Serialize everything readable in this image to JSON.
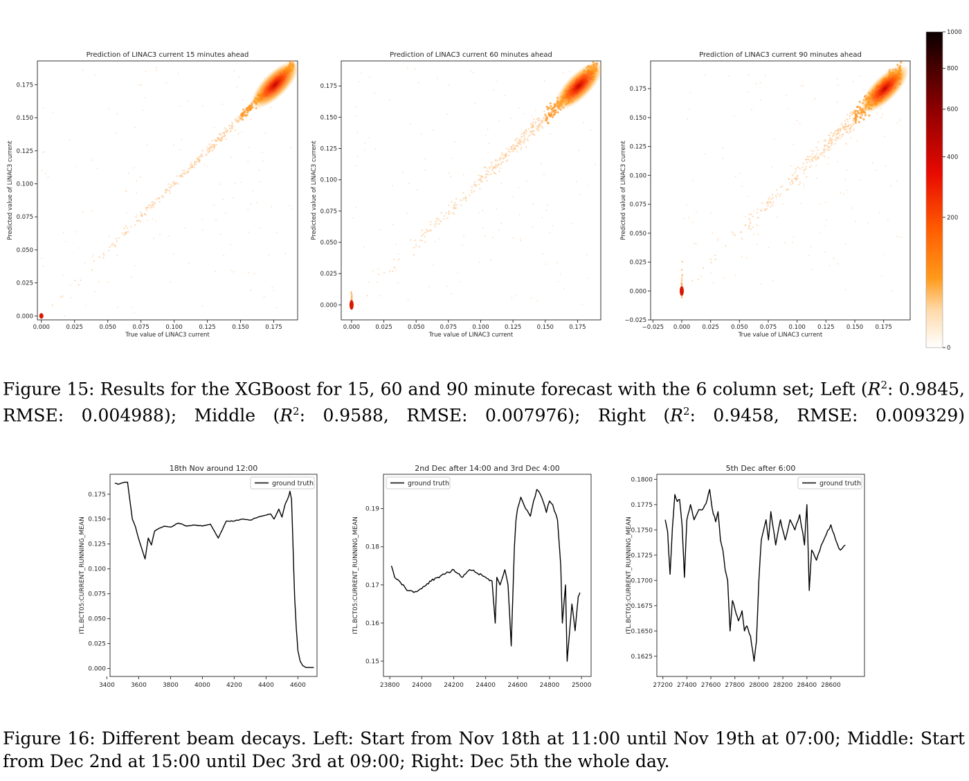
{
  "figure15": {
    "colorbar": {
      "ticks": [
        "1000",
        "800",
        "600",
        "400",
        "200",
        "0"
      ],
      "tick_values": [
        1000,
        800,
        600,
        400,
        200,
        0
      ]
    },
    "caption": {
      "prefix": "Figure 15: Results for the XGBoost for 15, 60 and 90 minute forecast with the 6 column set; Left (",
      "r2_label": "R",
      "sup": "2",
      "left_stats": ": 0.9845, RMSE: 0.004988); Middle (",
      "middle_stats": ": 0.9588, RMSE: 0.007976); Right (",
      "right_stats": ": 0.9458, RMSE: 0.009329)"
    }
  },
  "figure16": {
    "caption": "Figure 16: Different beam decays. Left: Start from Nov 18th at 11:00 until Nov 19th at 07:00; Middle: Start from Dec 2nd at 15:00 until Dec 3rd at 09:00; Right: Dec 5th the whole day."
  },
  "chart_data": [
    {
      "type": "heatmap",
      "title": "Prediction of LINAC3 current 15 minutes ahead",
      "xlabel": "True value of LINAC3 current",
      "ylabel": "Predicted value of LINAC3 current",
      "xlim": [
        -0.003,
        0.193
      ],
      "ylim": [
        -0.003,
        0.193
      ],
      "xticks": [
        "0.000",
        "0.025",
        "0.050",
        "0.075",
        "0.100",
        "0.125",
        "0.150",
        "0.175"
      ],
      "yticks": [
        "0.000",
        "0.025",
        "0.050",
        "0.075",
        "0.100",
        "0.125",
        "0.150",
        "0.175"
      ],
      "density_peak": [
        0.176,
        0.175
      ],
      "secondary_cluster": [
        0.0,
        0.0
      ],
      "colorbar_range": [
        0,
        1000
      ]
    },
    {
      "type": "heatmap",
      "title": "Prediction of LINAC3 current 60 minutes ahead",
      "xlabel": "True value of LINAC3 current",
      "ylabel": "Predicted value of LINAC3 current",
      "xlim": [
        -0.008,
        0.193
      ],
      "ylim": [
        -0.012,
        0.195
      ],
      "xticks": [
        "0.000",
        "0.025",
        "0.050",
        "0.075",
        "0.100",
        "0.125",
        "0.150",
        "0.175"
      ],
      "yticks": [
        "0.000",
        "0.025",
        "0.050",
        "0.075",
        "0.100",
        "0.125",
        "0.150",
        "0.175"
      ],
      "density_peak": [
        0.176,
        0.175
      ],
      "secondary_cluster": [
        0.0,
        0.0
      ],
      "colorbar_range": [
        0,
        1000
      ]
    },
    {
      "type": "heatmap",
      "title": "Prediction of LINAC3 current 90 minutes ahead",
      "xlabel": "True value of LINAC3 current",
      "ylabel": "Predicted value of LINAC3 current",
      "xlim": [
        -0.027,
        0.198
      ],
      "ylim": [
        -0.025,
        0.199
      ],
      "xticks": [
        "−0.025",
        "0.000",
        "0.025",
        "0.050",
        "0.075",
        "0.100",
        "0.125",
        "0.150",
        "0.175"
      ],
      "yticks": [
        "−0.025",
        "0.000",
        "0.025",
        "0.050",
        "0.075",
        "0.100",
        "0.125",
        "0.150",
        "0.175"
      ],
      "density_peak": [
        0.176,
        0.175
      ],
      "secondary_cluster": [
        0.0,
        0.0
      ],
      "colorbar_range": [
        0,
        1000
      ]
    },
    {
      "type": "line",
      "title": "18th Nov around 12:00",
      "xlabel": "",
      "ylabel": "ITL.BCT05:CURRENT_RUNNING_MEAN",
      "xlim": [
        3420,
        4720
      ],
      "ylim": [
        -0.008,
        0.195
      ],
      "xticks": [
        "3400",
        "3600",
        "3800",
        "4000",
        "4200",
        "4400",
        "4600"
      ],
      "yticks": [
        "0.000",
        "0.025",
        "0.050",
        "0.075",
        "0.100",
        "0.125",
        "0.150",
        "0.175"
      ],
      "legend": "ground truth",
      "legend_loc": "upper right",
      "series": [
        {
          "name": "ground truth",
          "x": [
            3450,
            3470,
            3490,
            3510,
            3530,
            3560,
            3580,
            3600,
            3620,
            3640,
            3660,
            3680,
            3700,
            3720,
            3760,
            3800,
            3850,
            3900,
            3950,
            4000,
            4050,
            4100,
            4150,
            4200,
            4250,
            4300,
            4350,
            4400,
            4430,
            4450,
            4480,
            4500,
            4520,
            4540,
            4550,
            4560,
            4570,
            4580,
            4590,
            4600,
            4615,
            4630,
            4650,
            4680,
            4700
          ],
          "y": [
            0.186,
            0.185,
            0.186,
            0.187,
            0.187,
            0.15,
            0.142,
            0.13,
            0.12,
            0.11,
            0.131,
            0.124,
            0.138,
            0.14,
            0.143,
            0.142,
            0.146,
            0.143,
            0.144,
            0.143,
            0.145,
            0.131,
            0.148,
            0.148,
            0.15,
            0.149,
            0.152,
            0.154,
            0.155,
            0.15,
            0.16,
            0.152,
            0.165,
            0.172,
            0.178,
            0.17,
            0.12,
            0.07,
            0.04,
            0.018,
            0.007,
            0.003,
            0.001,
            0.001,
            0.001
          ]
        }
      ]
    },
    {
      "type": "line",
      "title": "2nd Dec after 14:00 and 3rd Dec 4:00",
      "xlabel": "",
      "ylabel": "ITL.BCT05:CURRENT_RUNNING_MEAN",
      "xlim": [
        23760,
        25060
      ],
      "ylim": [
        0.146,
        0.199
      ],
      "xticks": [
        "23800",
        "24000",
        "24200",
        "24400",
        "24600",
        "24800",
        "25000"
      ],
      "yticks": [
        "0.15",
        "0.16",
        "0.17",
        "0.18",
        "0.19"
      ],
      "legend": "ground truth",
      "legend_loc": "upper left",
      "series": [
        {
          "name": "ground truth",
          "x": [
            23810,
            23830,
            23860,
            23900,
            23950,
            24000,
            24050,
            24100,
            24150,
            24200,
            24250,
            24300,
            24350,
            24400,
            24440,
            24460,
            24470,
            24490,
            24520,
            24540,
            24560,
            24580,
            24590,
            24600,
            24620,
            24650,
            24680,
            24700,
            24720,
            24750,
            24780,
            24800,
            24820,
            24850,
            24870,
            24880,
            24900,
            24910,
            24920,
            24940,
            24960,
            24980,
            24990
          ],
          "y": [
            0.175,
            0.172,
            0.171,
            0.169,
            0.168,
            0.169,
            0.171,
            0.172,
            0.173,
            0.174,
            0.172,
            0.174,
            0.173,
            0.172,
            0.171,
            0.16,
            0.172,
            0.17,
            0.174,
            0.17,
            0.154,
            0.18,
            0.187,
            0.19,
            0.193,
            0.19,
            0.188,
            0.192,
            0.195,
            0.193,
            0.189,
            0.192,
            0.191,
            0.187,
            0.175,
            0.16,
            0.17,
            0.15,
            0.155,
            0.165,
            0.158,
            0.167,
            0.168
          ]
        }
      ]
    },
    {
      "type": "line",
      "title": "5th Dec after 6:00",
      "xlabel": "",
      "ylabel": "ITL.BCT05:CURRENT_RUNNING_MEAN",
      "xlim": [
        27150,
        28880
      ],
      "ylim": [
        0.1605,
        0.1805
      ],
      "xticks": [
        "27200",
        "27400",
        "27600",
        "27800",
        "28000",
        "28200",
        "28400",
        "28600"
      ],
      "yticks": [
        "0.1625",
        "0.1650",
        "0.1675",
        "0.1700",
        "0.1725",
        "0.1750",
        "0.1775",
        "0.1800"
      ],
      "legend": "ground truth",
      "legend_loc": "upper right",
      "series": [
        {
          "name": "ground truth",
          "x": [
            27220,
            27240,
            27260,
            27280,
            27300,
            27320,
            27340,
            27360,
            27380,
            27400,
            27430,
            27460,
            27500,
            27530,
            27560,
            27590,
            27610,
            27640,
            27660,
            27680,
            27700,
            27720,
            27740,
            27760,
            27780,
            27800,
            27830,
            27860,
            27880,
            27900,
            27930,
            27960,
            27980,
            28000,
            28020,
            28040,
            28060,
            28080,
            28100,
            28140,
            28180,
            28220,
            28260,
            28300,
            28340,
            28380,
            28400,
            28420,
            28440,
            28480,
            28520,
            28560,
            28600,
            28640,
            28680,
            28720
          ],
          "y": [
            0.176,
            0.1748,
            0.1706,
            0.1752,
            0.1785,
            0.1778,
            0.178,
            0.1755,
            0.1703,
            0.176,
            0.1775,
            0.176,
            0.177,
            0.177,
            0.1776,
            0.179,
            0.1772,
            0.1758,
            0.1768,
            0.174,
            0.173,
            0.171,
            0.17,
            0.165,
            0.168,
            0.1672,
            0.166,
            0.167,
            0.165,
            0.1655,
            0.1645,
            0.162,
            0.164,
            0.17,
            0.174,
            0.175,
            0.176,
            0.174,
            0.1768,
            0.1735,
            0.176,
            0.174,
            0.176,
            0.175,
            0.1765,
            0.1735,
            0.1775,
            0.169,
            0.173,
            0.172,
            0.1735,
            0.1745,
            0.1755,
            0.174,
            0.173,
            0.1735
          ]
        }
      ]
    }
  ]
}
